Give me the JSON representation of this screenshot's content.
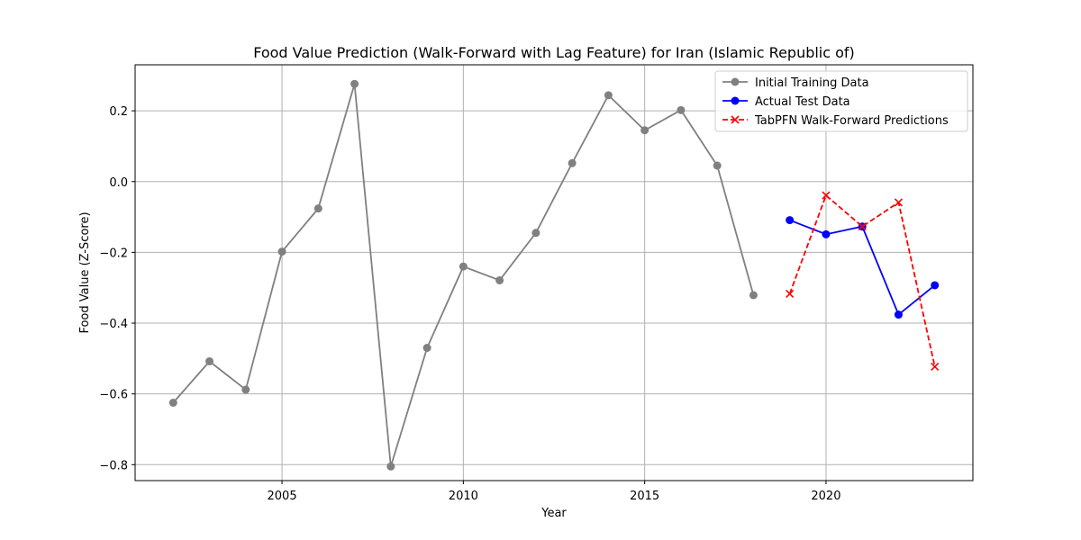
{
  "chart_data": {
    "type": "line",
    "title": "Food Value Prediction (Walk-Forward with Lag Feature) for Iran (Islamic Republic of)",
    "xlabel": "Year",
    "ylabel": "Food Value (Z-Score)",
    "xlim": [
      2000.95,
      2024.05
    ],
    "ylim": [
      -0.845,
      0.33
    ],
    "xticks": [
      2005,
      2010,
      2015,
      2020
    ],
    "yticks": [
      0.2,
      0.0,
      -0.2,
      -0.4,
      -0.6,
      -0.8
    ],
    "ytick_labels": [
      "0.2",
      "0.0",
      "−0.2",
      "−0.4",
      "−0.6",
      "−0.8"
    ],
    "grid": true,
    "legend_position": "top-right",
    "series": [
      {
        "name": "Initial Training Data",
        "color": "#808080",
        "marker": "circle",
        "linestyle": "solid",
        "x": [
          2002,
          2003,
          2004,
          2005,
          2006,
          2007,
          2008,
          2009,
          2010,
          2011,
          2012,
          2013,
          2014,
          2015,
          2016,
          2017,
          2018
        ],
        "values": [
          -0.625,
          -0.508,
          -0.588,
          -0.198,
          -0.076,
          0.276,
          -0.805,
          -0.47,
          -0.24,
          -0.279,
          -0.145,
          0.052,
          0.244,
          0.145,
          0.202,
          0.045,
          -0.321
        ]
      },
      {
        "name": "Actual Test Data",
        "color": "#0000ff",
        "marker": "circle",
        "linestyle": "solid",
        "x": [
          2019,
          2020,
          2021,
          2022,
          2023
        ],
        "values": [
          -0.109,
          -0.149,
          -0.127,
          -0.376,
          -0.293
        ]
      },
      {
        "name": "TabPFN Walk-Forward Predictions",
        "color": "#ff0000",
        "marker": "x",
        "linestyle": "dashed",
        "x": [
          2019,
          2020,
          2021,
          2022,
          2023
        ],
        "values": [
          -0.317,
          -0.039,
          -0.127,
          -0.059,
          -0.523
        ]
      }
    ]
  }
}
